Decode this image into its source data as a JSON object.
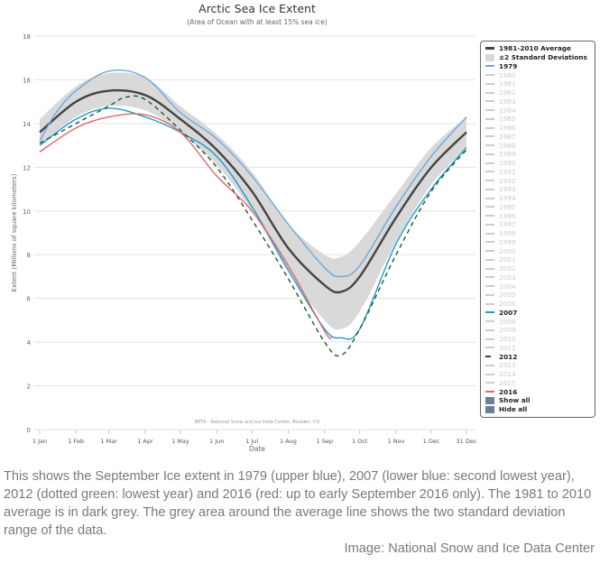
{
  "chart_data": {
    "type": "line",
    "title": "Arctic Sea Ice Extent",
    "subtitle": "(Area of Ocean with at least 15% sea ice)",
    "xlabel": "Date",
    "ylabel": "Extent (Millions of square kilometers)",
    "ylim": [
      0,
      18
    ],
    "yticks": [
      0,
      2,
      4,
      6,
      8,
      10,
      12,
      14,
      16,
      18
    ],
    "xticks": [
      {
        "date": "01-01",
        "label": "1 Jan"
      },
      {
        "date": "02-01",
        "label": "1 Feb"
      },
      {
        "date": "03-01",
        "label": "1 Mar"
      },
      {
        "date": "04-01",
        "label": "1 Apr"
      },
      {
        "date": "05-01",
        "label": "1 May"
      },
      {
        "date": "06-01",
        "label": "1 Jun"
      },
      {
        "date": "07-01",
        "label": "1 Jul"
      },
      {
        "date": "08-01",
        "label": "1 Aug"
      },
      {
        "date": "09-01",
        "label": "1 Sep"
      },
      {
        "date": "10-01",
        "label": "1 Oct"
      },
      {
        "date": "11-01",
        "label": "1 Nov"
      },
      {
        "date": "12-01",
        "label": "1 Dec"
      },
      {
        "date": "12-31",
        "label": "31 Dec"
      }
    ],
    "grid": true,
    "legend_placement": "right",
    "credit": "BETA - National Snow and Ice Data Center, Boulder, CO",
    "band": {
      "name": "±2 Standard Deviations",
      "color": "#d9d9d9",
      "x": [
        "01-01",
        "02-01",
        "03-01",
        "04-01",
        "05-01",
        "06-01",
        "07-01",
        "08-01",
        "09-01",
        "09-15",
        "10-01",
        "11-01",
        "12-01",
        "12-31"
      ],
      "low": [
        13.0,
        14.3,
        14.8,
        14.6,
        13.6,
        12.1,
        10.0,
        7.2,
        5.0,
        4.6,
        5.4,
        8.6,
        11.2,
        12.9
      ],
      "high": [
        14.2,
        15.7,
        16.3,
        16.1,
        14.8,
        13.5,
        11.8,
        9.4,
        8.0,
        7.9,
        8.6,
        10.8,
        12.9,
        14.3
      ]
    },
    "series": [
      {
        "name": "1981-2010 Average",
        "color": "#444444",
        "dash": "",
        "x": [
          "01-01",
          "02-01",
          "03-01",
          "04-01",
          "05-01",
          "06-01",
          "07-01",
          "08-01",
          "09-01",
          "09-15",
          "10-01",
          "11-01",
          "12-01",
          "12-31"
        ],
        "y": [
          13.6,
          15.0,
          15.5,
          15.3,
          14.2,
          12.8,
          10.9,
          8.3,
          6.6,
          6.3,
          7.0,
          9.7,
          12.0,
          13.6
        ]
      },
      {
        "name": "1979",
        "color": "#6fa8dc",
        "dash": "",
        "x": [
          "01-01",
          "01-15",
          "02-01",
          "03-01",
          "04-01",
          "05-01",
          "06-01",
          "07-01",
          "08-01",
          "09-01",
          "09-15",
          "10-01",
          "11-01",
          "12-01",
          "12-31"
        ],
        "y": [
          13.2,
          14.5,
          15.5,
          16.4,
          16.1,
          14.5,
          13.3,
          11.6,
          9.4,
          7.4,
          7.0,
          7.5,
          10.2,
          12.5,
          14.3
        ]
      },
      {
        "name": "2007",
        "color": "#1f9bd1",
        "dash": "",
        "x": [
          "01-01",
          "02-01",
          "03-01",
          "04-01",
          "05-01",
          "06-01",
          "07-01",
          "08-01",
          "09-01",
          "09-15",
          "10-01",
          "11-01",
          "12-01",
          "12-31"
        ],
        "y": [
          13.0,
          14.2,
          14.7,
          14.3,
          13.6,
          12.5,
          10.2,
          7.3,
          4.6,
          4.2,
          4.6,
          8.5,
          11.0,
          12.9
        ]
      },
      {
        "name": "2012",
        "color": "#1e5631",
        "dash": "5,4",
        "x": [
          "01-01",
          "02-01",
          "03-01",
          "03-15",
          "04-01",
          "05-01",
          "06-01",
          "07-01",
          "08-01",
          "09-01",
          "09-15",
          "10-01",
          "11-01",
          "12-01",
          "12-31"
        ],
        "y": [
          13.1,
          14.0,
          14.8,
          15.2,
          15.1,
          13.7,
          12.0,
          9.6,
          6.9,
          4.0,
          3.4,
          4.6,
          8.0,
          10.9,
          12.8
        ]
      },
      {
        "name": "2016",
        "color": "#e06666",
        "dash": "",
        "x": [
          "01-01",
          "02-01",
          "03-01",
          "04-01",
          "05-01",
          "06-01",
          "07-01",
          "08-01",
          "09-01",
          "09-07"
        ],
        "y": [
          12.7,
          13.8,
          14.3,
          14.4,
          13.6,
          11.6,
          10.0,
          7.5,
          4.5,
          4.2
        ]
      }
    ]
  },
  "legend": {
    "average": "1981-2010 Average",
    "band": "±2 Standard Deviations",
    "years": [
      "1979",
      "1980",
      "1981",
      "1982",
      "1983",
      "1984",
      "1985",
      "1986",
      "1987",
      "1988",
      "1989",
      "1990",
      "1991",
      "1992",
      "1993",
      "1994",
      "1995",
      "1996",
      "1997",
      "1998",
      "1999",
      "2000",
      "2001",
      "2002",
      "2003",
      "2004",
      "2005",
      "2006",
      "2007",
      "2008",
      "2009",
      "2010",
      "2011",
      "2012",
      "2013",
      "2014",
      "2015",
      "2016"
    ],
    "active": {
      "1979": "#6fa8dc",
      "2007": "#1f9bd1",
      "2012": "#1e5631",
      "2016": "#e06666"
    },
    "show_all": "Show all",
    "hide_all": "Hide all",
    "button_color": "#6b7f99"
  },
  "caption": "This shows the September Ice extent in 1979 (upper blue), 2007 (lower blue: second lowest year), 2012 (dotted green: lowest year) and 2016 (red: up to early September 2016 only). The 1981 to 2010 average is in dark grey. The grey area around the average line shows the two standard deviation range of the data.",
  "credit": "Image: National Snow and Ice Data Center"
}
